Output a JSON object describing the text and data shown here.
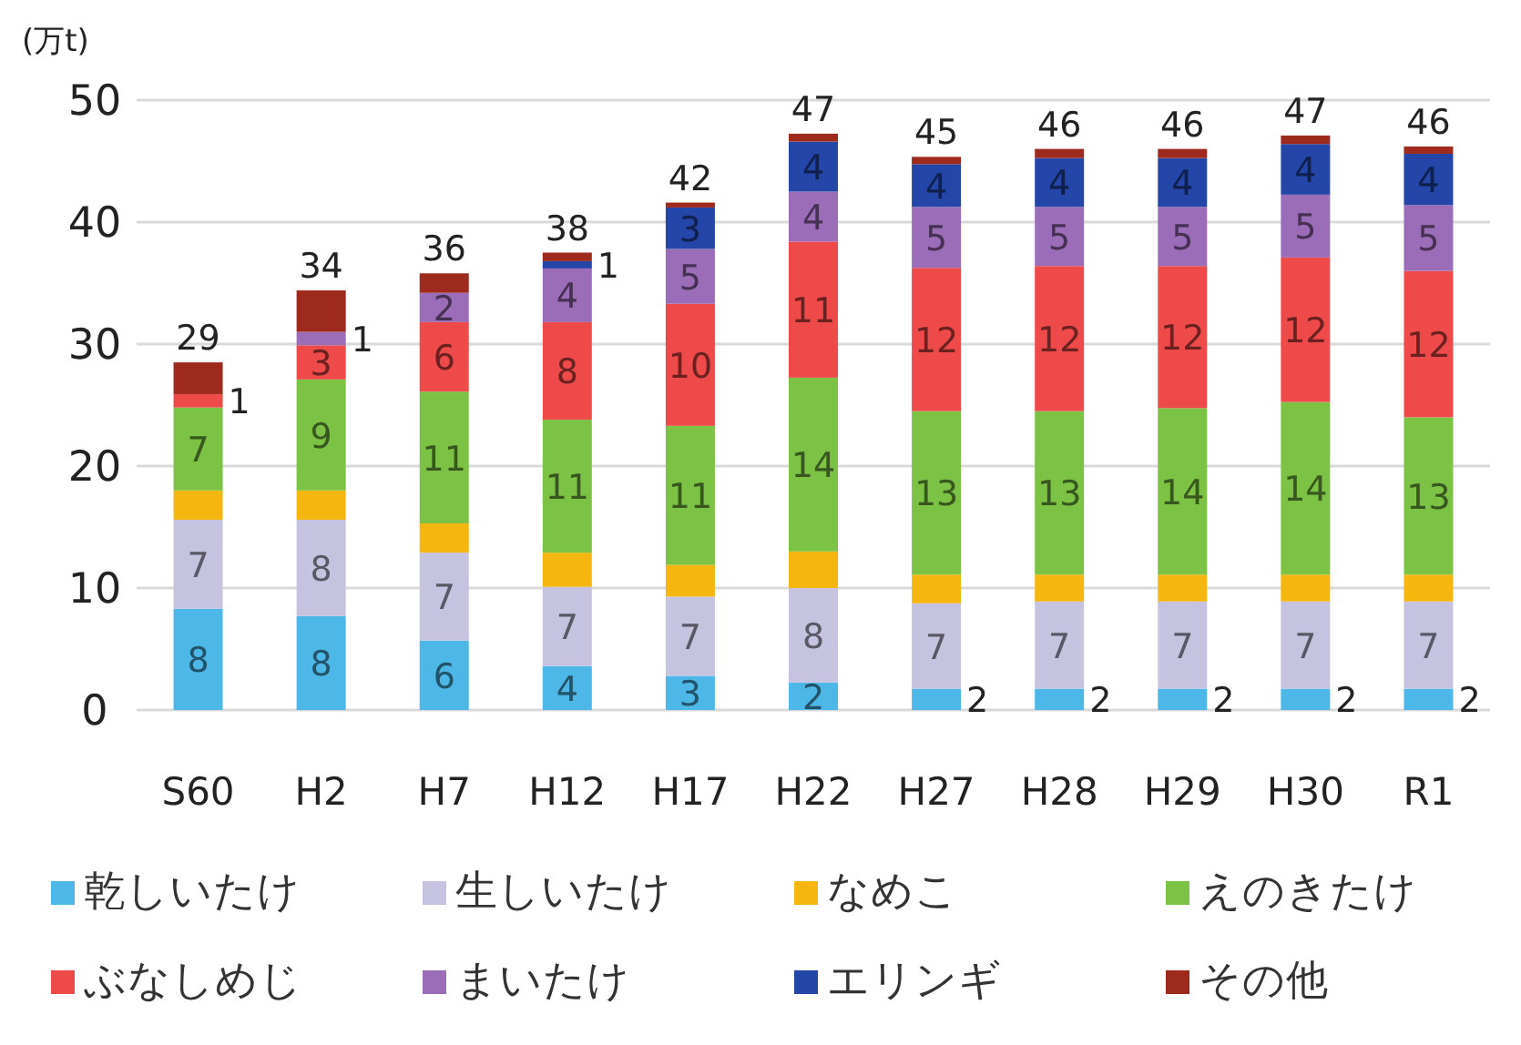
{
  "chart_data": {
    "type": "bar",
    "stacked": true,
    "ylabel": "(万t)",
    "categories": [
      "S60",
      "H2",
      "H7",
      "H12",
      "H17",
      "H22",
      "H27",
      "H28",
      "H29",
      "H30",
      "R1"
    ],
    "ylim": [
      0,
      50
    ],
    "yticks": [
      0,
      10,
      20,
      30,
      40,
      50
    ],
    "grid": "y",
    "legend": "bottom",
    "series": [
      {
        "name": "乾しいたけ",
        "color": "#4db8e8",
        "values": [
          8.3,
          7.7,
          5.7,
          3.6,
          2.8,
          2.25,
          1.75,
          1.75,
          1.75,
          1.75,
          1.75
        ],
        "value_labels": [
          "8",
          "8",
          "6",
          "4",
          "3",
          "2",
          "2",
          "2",
          "2",
          "2",
          "2"
        ]
      },
      {
        "name": "生しいたけ",
        "color": "#c6c3e0",
        "values": [
          7.3,
          7.9,
          7.2,
          6.5,
          6.5,
          7.75,
          7.0,
          7.15,
          7.15,
          7.15,
          7.15
        ],
        "value_labels": [
          "7",
          "8",
          "7",
          "7",
          "7",
          "8",
          "7",
          "7",
          "7",
          "7",
          "7"
        ]
      },
      {
        "name": "なめこ",
        "color": "#f5b70f",
        "values": [
          2.4,
          2.4,
          2.4,
          2.8,
          2.6,
          3.0,
          2.35,
          2.2,
          2.2,
          2.2,
          2.2
        ]
      },
      {
        "name": "えのきたけ",
        "color": "#7cc244",
        "values": [
          6.8,
          9.1,
          10.8,
          10.9,
          11.4,
          14.25,
          13.4,
          13.4,
          13.65,
          14.15,
          12.9
        ],
        "value_labels": [
          "7",
          "9",
          "11",
          "11",
          "11",
          "14",
          "13",
          "13",
          "14",
          "14",
          "13"
        ]
      },
      {
        "name": "ぶなしめじ",
        "color": "#ef4a4a",
        "values": [
          1.1,
          2.8,
          5.7,
          8.0,
          10.0,
          11.15,
          11.75,
          11.9,
          11.65,
          11.85,
          12.0
        ],
        "value_labels": [
          "1",
          "3",
          "6",
          "8",
          "10",
          "11",
          "12",
          "12",
          "12",
          "12",
          "12"
        ]
      },
      {
        "name": "まいたけ",
        "color": "#9b6cb8",
        "values": [
          0,
          1.1,
          2.4,
          4.4,
          4.5,
          4.1,
          5.0,
          4.85,
          4.85,
          5.15,
          5.4
        ],
        "value_labels": [
          null,
          "1",
          "2",
          "4",
          "5",
          "4",
          "5",
          "5",
          "5",
          "5",
          "5"
        ]
      },
      {
        "name": "エリンギ",
        "color": "#2446a8",
        "values": [
          0,
          0,
          0,
          0.6,
          3.4,
          4.1,
          3.5,
          4.0,
          4.0,
          4.15,
          4.2
        ],
        "value_labels": [
          null,
          null,
          null,
          "1",
          "3",
          "4",
          "4",
          "4",
          "4",
          "4",
          "4"
        ]
      },
      {
        "name": "その他",
        "color": "#9e2a1e",
        "values": [
          2.6,
          3.4,
          1.6,
          0.7,
          0.4,
          0.65,
          0.6,
          0.75,
          0.75,
          0.7,
          0.6
        ]
      }
    ],
    "totals": [
      "29",
      "34",
      "36",
      "38",
      "42",
      "47",
      "45",
      "46",
      "46",
      "47",
      "46"
    ]
  }
}
